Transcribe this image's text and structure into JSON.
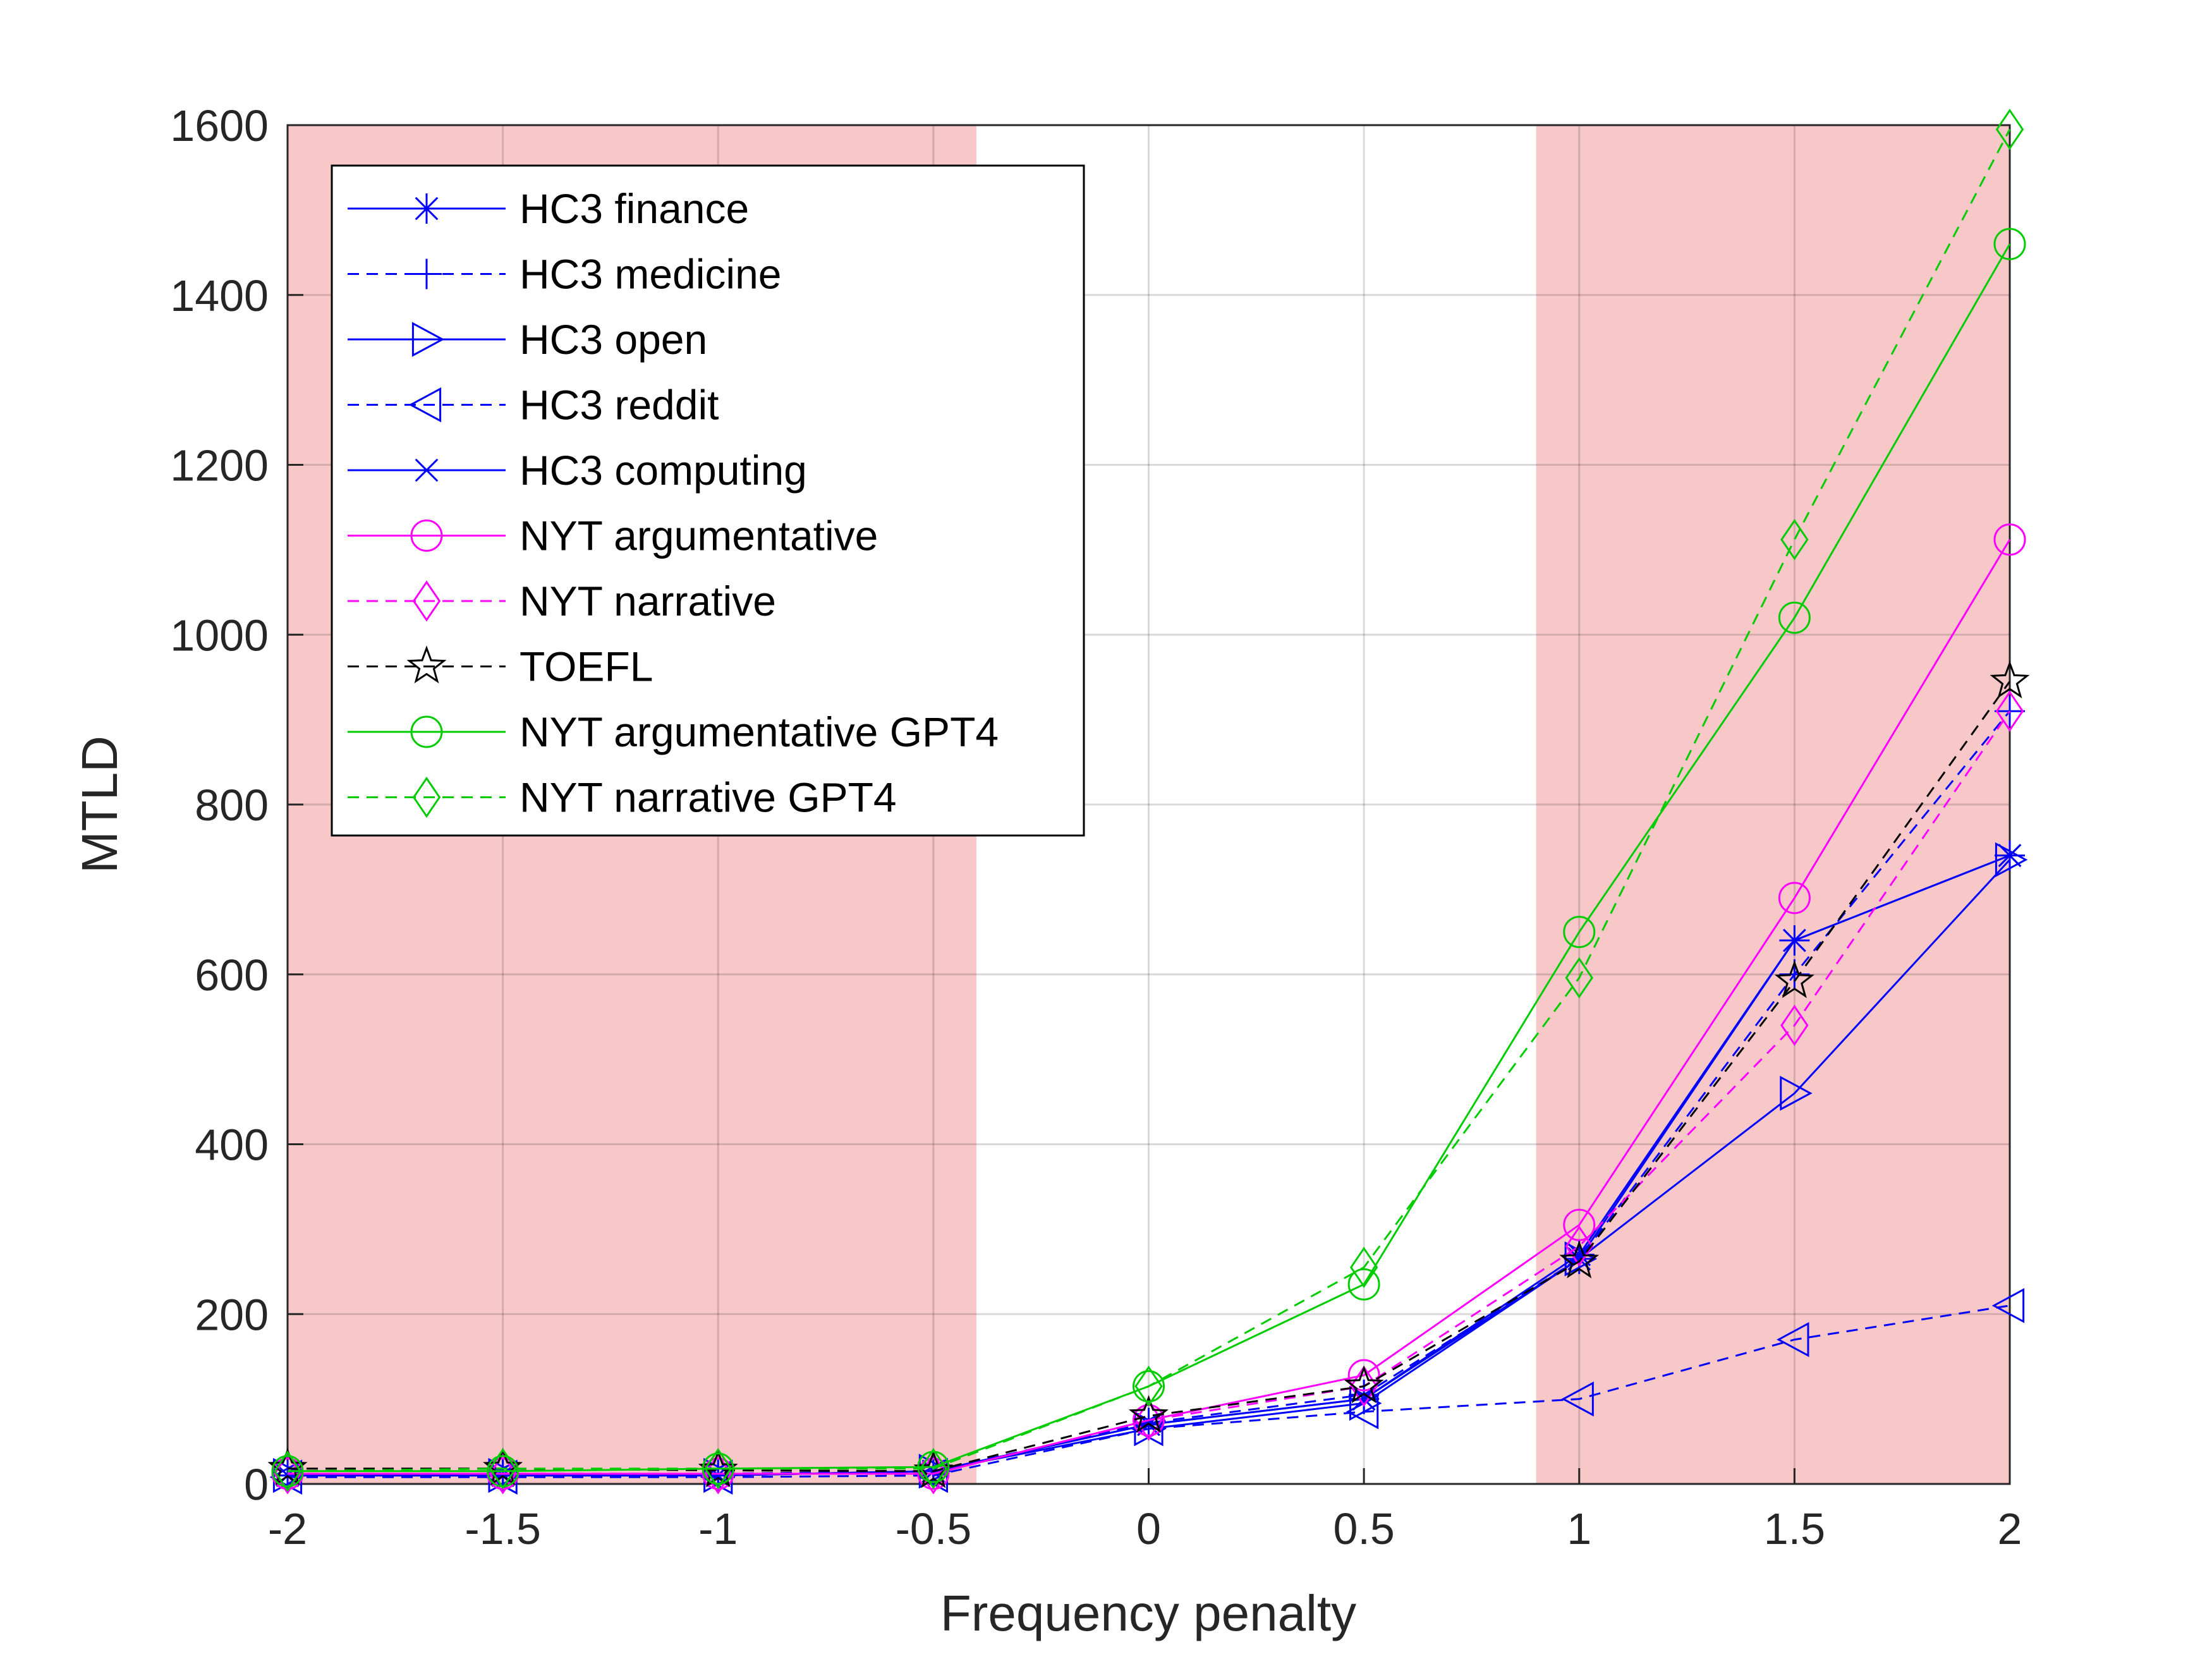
{
  "chart_data": {
    "type": "line",
    "title": "",
    "xlabel": "Frequency penalty",
    "ylabel": "MTLD",
    "xlim": [
      -2,
      2
    ],
    "ylim": [
      0,
      1600
    ],
    "grid": true,
    "legend_position": "top-left",
    "x": [
      -2,
      -1.5,
      -1,
      -0.5,
      0,
      0.5,
      1,
      1.5,
      2
    ],
    "xticks": [
      -2,
      -1.5,
      -1,
      -0.5,
      0,
      0.5,
      1,
      1.5,
      2
    ],
    "xtick_labels": [
      "-2",
      "-1.5",
      "-1",
      "-0.5",
      "0",
      "0.5",
      "1",
      "1.5",
      "2"
    ],
    "yticks": [
      0,
      200,
      400,
      600,
      800,
      1000,
      1200,
      1400,
      1600
    ],
    "ytick_labels": [
      "0",
      "200",
      "400",
      "600",
      "800",
      "1000",
      "1200",
      "1400",
      "1600"
    ],
    "shaded_regions": [
      {
        "x_start": -2,
        "x_end": -0.4,
        "color": "#f8c8c8"
      },
      {
        "x_start": 0.9,
        "x_end": 2,
        "color": "#f8c8c8"
      }
    ],
    "series": [
      {
        "name": "HC3 finance",
        "color": "#0000ff",
        "dash": "solid",
        "marker": "asterisk",
        "values": [
          10,
          10,
          10,
          15,
          70,
          100,
          270,
          640,
          740
        ]
      },
      {
        "name": "HC3 medicine",
        "color": "#0000ff",
        "dash": "dashed",
        "marker": "plus",
        "values": [
          10,
          12,
          12,
          15,
          72,
          105,
          265,
          600,
          910
        ]
      },
      {
        "name": "HC3 open",
        "color": "#0000ff",
        "dash": "solid",
        "marker": "triangle-right",
        "values": [
          10,
          10,
          10,
          15,
          65,
          95,
          265,
          460,
          735
        ]
      },
      {
        "name": "HC3 reddit",
        "color": "#0000ff",
        "dash": "dashed",
        "marker": "triangle-left",
        "values": [
          8,
          8,
          8,
          10,
          65,
          85,
          100,
          170,
          210
        ]
      },
      {
        "name": "HC3 computing",
        "color": "#0000ff",
        "dash": "solid",
        "marker": "x",
        "values": [
          10,
          10,
          10,
          15,
          70,
          100,
          265,
          640,
          740
        ]
      },
      {
        "name": "NYT argumentative",
        "color": "#ff00ff",
        "dash": "solid",
        "marker": "circle",
        "values": [
          12,
          12,
          12,
          12,
          75,
          128,
          305,
          690,
          1112
        ]
      },
      {
        "name": "NYT narrative",
        "color": "#ff00ff",
        "dash": "dashed",
        "marker": "diamond",
        "values": [
          12,
          12,
          12,
          12,
          75,
          115,
          280,
          540,
          910
        ]
      },
      {
        "name": "TOEFL",
        "color": "#000000",
        "dash": "dashed",
        "marker": "star",
        "values": [
          18,
          18,
          16,
          15,
          80,
          115,
          262,
          592,
          945
        ]
      },
      {
        "name": "NYT argumentative GPT4",
        "color": "#00cc00",
        "dash": "solid",
        "marker": "circle",
        "values": [
          15,
          15,
          18,
          20,
          115,
          235,
          650,
          1020,
          1460
        ]
      },
      {
        "name": "NYT narrative GPT4",
        "color": "#00cc00",
        "dash": "dashed",
        "marker": "diamond",
        "values": [
          15,
          18,
          18,
          18,
          115,
          255,
          596,
          1112,
          1595
        ]
      }
    ]
  }
}
